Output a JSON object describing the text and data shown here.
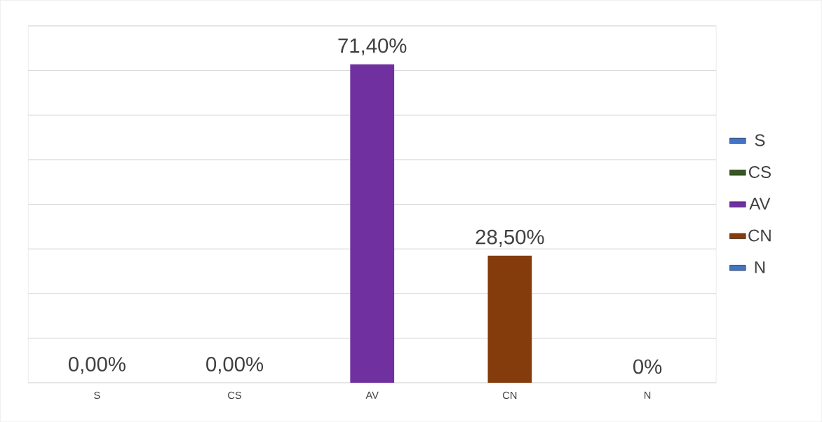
{
  "chart_data": {
    "type": "bar",
    "categories": [
      "S",
      "CS",
      "AV",
      "CN",
      "N"
    ],
    "series": [
      {
        "name": "S",
        "color": "#4472c4",
        "values": [
          0,
          null,
          null,
          null,
          null
        ],
        "value_labels": [
          "0,00%",
          null,
          null,
          null,
          null
        ]
      },
      {
        "name": "CS",
        "color": "#375623",
        "values": [
          null,
          0,
          null,
          null,
          null
        ],
        "value_labels": [
          null,
          "0,00%",
          null,
          null,
          null
        ]
      },
      {
        "name": "AV",
        "color": "#7030a0",
        "values": [
          null,
          null,
          71.4,
          null,
          null
        ],
        "value_labels": [
          null,
          null,
          "71,40%",
          null,
          null
        ]
      },
      {
        "name": "CN",
        "color": "#843c0c",
        "values": [
          null,
          null,
          null,
          28.5,
          null
        ],
        "value_labels": [
          null,
          null,
          null,
          "28,50%",
          null
        ]
      },
      {
        "name": "N",
        "color": "#4472c4",
        "values": [
          null,
          null,
          null,
          null,
          0
        ],
        "value_labels": [
          null,
          null,
          null,
          null,
          "0%"
        ]
      }
    ],
    "ylim": [
      0,
      80
    ],
    "yticks": [
      {
        "value": 0,
        "label": null
      },
      {
        "value": 10,
        "label": null
      },
      {
        "value": 20,
        "label": null
      },
      {
        "value": 30,
        "label": null
      },
      {
        "value": 40,
        "label": null
      },
      {
        "value": 50,
        "label": null
      },
      {
        "value": 60,
        "label": null
      },
      {
        "value": 70,
        "label": null
      },
      {
        "value": 80,
        "label": null
      }
    ],
    "tick_labels": "x",
    "grid": "y",
    "legend": "right"
  }
}
